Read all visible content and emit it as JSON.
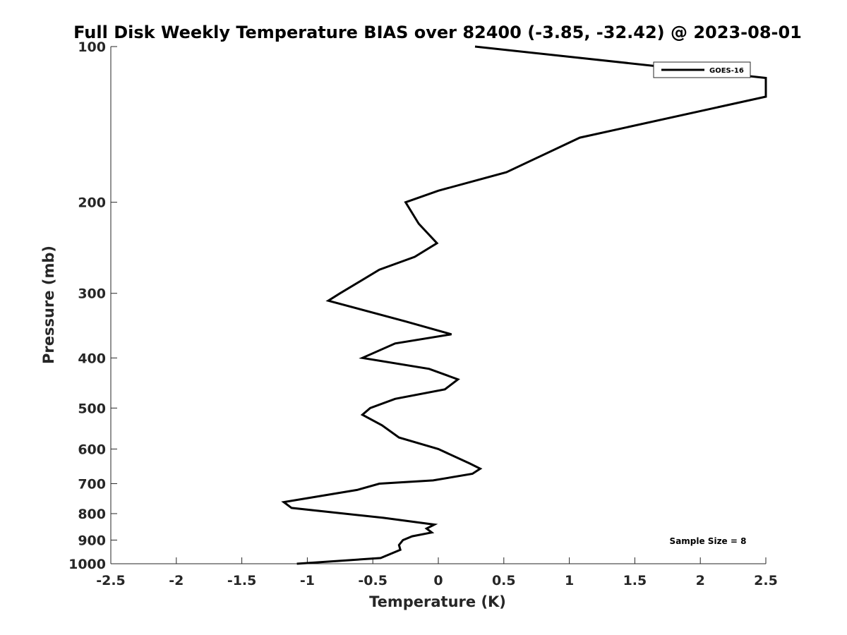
{
  "chart_data": {
    "type": "line",
    "title": "Full Disk Weekly Temperature BIAS over 82400 (-3.85, -32.42) @ 2023-08-01",
    "xlabel": "Temperature (K)",
    "ylabel": "Pressure (mb)",
    "xlim": [
      -2.5,
      2.5
    ],
    "ylim": [
      100,
      1000
    ],
    "y_scale": "log",
    "y_reversed": true,
    "grid": false,
    "x_ticks": [
      -2.5,
      -2,
      -1.5,
      -1,
      -0.5,
      0,
      0.5,
      1,
      1.5,
      2,
      2.5
    ],
    "x_tick_labels": [
      "-2.5",
      "-2",
      "-1.5",
      "-1",
      "-0.5",
      "0",
      "0.5",
      "1",
      "1.5",
      "2",
      "2.5"
    ],
    "y_ticks": [
      100,
      200,
      300,
      400,
      500,
      600,
      700,
      800,
      900,
      1000
    ],
    "y_tick_labels": [
      "100",
      "200",
      "300",
      "400",
      "500",
      "600",
      "700",
      "800",
      "900",
      "1000"
    ],
    "legend": {
      "position": "top-right"
    },
    "annotation": "Sample Size = 8",
    "series": [
      {
        "name": "GOES-16",
        "color": "#000000",
        "points": [
          {
            "x": 0.28,
            "y": 100
          },
          {
            "x": 2.5,
            "y": 115
          },
          {
            "x": 2.5,
            "y": 125
          },
          {
            "x": 1.08,
            "y": 150
          },
          {
            "x": 0.52,
            "y": 175
          },
          {
            "x": 0.0,
            "y": 190
          },
          {
            "x": -0.25,
            "y": 200
          },
          {
            "x": -0.15,
            "y": 220
          },
          {
            "x": -0.01,
            "y": 240
          },
          {
            "x": -0.18,
            "y": 255
          },
          {
            "x": -0.45,
            "y": 270
          },
          {
            "x": -0.75,
            "y": 300
          },
          {
            "x": -0.84,
            "y": 310
          },
          {
            "x": -0.25,
            "y": 340
          },
          {
            "x": 0.1,
            "y": 360
          },
          {
            "x": -0.33,
            "y": 375
          },
          {
            "x": -0.58,
            "y": 400
          },
          {
            "x": -0.07,
            "y": 420
          },
          {
            "x": 0.15,
            "y": 440
          },
          {
            "x": 0.05,
            "y": 460
          },
          {
            "x": -0.33,
            "y": 480
          },
          {
            "x": -0.52,
            "y": 500
          },
          {
            "x": -0.58,
            "y": 515
          },
          {
            "x": -0.43,
            "y": 540
          },
          {
            "x": -0.3,
            "y": 570
          },
          {
            "x": 0.0,
            "y": 600
          },
          {
            "x": 0.24,
            "y": 640
          },
          {
            "x": 0.32,
            "y": 655
          },
          {
            "x": 0.26,
            "y": 670
          },
          {
            "x": -0.04,
            "y": 690
          },
          {
            "x": -0.45,
            "y": 700
          },
          {
            "x": -0.62,
            "y": 720
          },
          {
            "x": -1.18,
            "y": 760
          },
          {
            "x": -1.12,
            "y": 780
          },
          {
            "x": -0.42,
            "y": 815
          },
          {
            "x": -0.03,
            "y": 840
          },
          {
            "x": -0.09,
            "y": 855
          },
          {
            "x": -0.05,
            "y": 870
          },
          {
            "x": -0.2,
            "y": 885
          },
          {
            "x": -0.27,
            "y": 900
          },
          {
            "x": -0.3,
            "y": 920
          },
          {
            "x": -0.29,
            "y": 940
          },
          {
            "x": -0.44,
            "y": 975
          },
          {
            "x": -1.08,
            "y": 1000
          }
        ]
      }
    ]
  }
}
